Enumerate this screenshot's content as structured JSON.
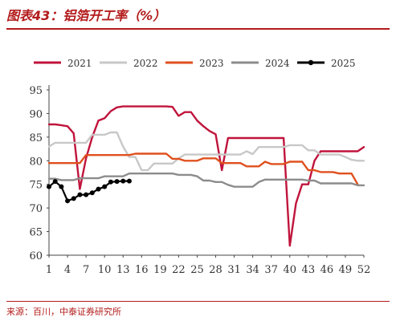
{
  "figure": {
    "title": "图表43：铝箔开工率（%）",
    "source": "来源：百川，中泰证券研究所"
  },
  "chart_data": {
    "type": "line",
    "x_tick_labels": [
      "1",
      "4",
      "7",
      "10",
      "13",
      "16",
      "19",
      "22",
      "25",
      "28",
      "31",
      "34",
      "37",
      "40",
      "43",
      "46",
      "49",
      "52"
    ],
    "y_tick_labels": [
      "60",
      "65",
      "70",
      "75",
      "80",
      "85",
      "90",
      "95"
    ],
    "xlim": [
      1,
      52
    ],
    "ylim": [
      60,
      95
    ],
    "grid": false,
    "legend_position": "top",
    "series": [
      {
        "name": "2021",
        "color": "#c0143c",
        "points": [
          [
            1,
            87.7
          ],
          [
            2,
            87.7
          ],
          [
            3,
            87.5
          ],
          [
            4,
            87.3
          ],
          [
            5,
            85.8
          ],
          [
            6,
            74.0
          ],
          [
            7,
            80.5
          ],
          [
            8,
            85.0
          ],
          [
            9,
            88.5
          ],
          [
            10,
            89.0
          ],
          [
            11,
            90.5
          ],
          [
            12,
            91.3
          ],
          [
            13,
            91.5
          ],
          [
            14,
            91.5
          ],
          [
            15,
            91.5
          ],
          [
            16,
            91.5
          ],
          [
            17,
            91.5
          ],
          [
            18,
            91.5
          ],
          [
            19,
            91.5
          ],
          [
            20,
            91.5
          ],
          [
            21,
            91.4
          ],
          [
            22,
            89.5
          ],
          [
            23,
            90.3
          ],
          [
            24,
            90.3
          ],
          [
            25,
            88.5
          ],
          [
            26,
            87.3
          ],
          [
            27,
            86.3
          ],
          [
            28,
            85.6
          ],
          [
            29,
            78.0
          ],
          [
            30,
            84.8
          ],
          [
            31,
            84.8
          ],
          [
            32,
            84.8
          ],
          [
            33,
            84.8
          ],
          [
            34,
            84.8
          ],
          [
            35,
            84.8
          ],
          [
            36,
            84.8
          ],
          [
            37,
            84.8
          ],
          [
            38,
            84.8
          ],
          [
            39,
            84.8
          ],
          [
            40,
            62.0
          ],
          [
            41,
            71.0
          ],
          [
            42,
            75.0
          ],
          [
            43,
            75.0
          ],
          [
            44,
            80.0
          ],
          [
            45,
            82.0
          ],
          [
            46,
            82.0
          ],
          [
            47,
            82.0
          ],
          [
            48,
            82.0
          ],
          [
            49,
            82.0
          ],
          [
            50,
            82.0
          ],
          [
            51,
            82.0
          ],
          [
            52,
            82.9
          ]
        ]
      },
      {
        "name": "2022",
        "color": "#c8c8c8",
        "points": [
          [
            1,
            83.0
          ],
          [
            2,
            83.8
          ],
          [
            3,
            83.8
          ],
          [
            4,
            83.8
          ],
          [
            5,
            83.8
          ],
          [
            6,
            83.8
          ],
          [
            7,
            83.8
          ],
          [
            8,
            85.5
          ],
          [
            9,
            85.5
          ],
          [
            10,
            85.5
          ],
          [
            11,
            86.0
          ],
          [
            12,
            86.0
          ],
          [
            13,
            83.0
          ],
          [
            14,
            80.8
          ],
          [
            15,
            80.8
          ],
          [
            16,
            78.0
          ],
          [
            17,
            78.0
          ],
          [
            18,
            79.4
          ],
          [
            19,
            79.4
          ],
          [
            20,
            79.4
          ],
          [
            21,
            79.4
          ],
          [
            22,
            80.5
          ],
          [
            23,
            81.3
          ],
          [
            24,
            81.3
          ],
          [
            25,
            81.3
          ],
          [
            26,
            81.3
          ],
          [
            27,
            81.3
          ],
          [
            28,
            81.3
          ],
          [
            29,
            81.3
          ],
          [
            30,
            81.3
          ],
          [
            31,
            81.3
          ],
          [
            32,
            81.3
          ],
          [
            33,
            82.0
          ],
          [
            34,
            81.4
          ],
          [
            35,
            82.9
          ],
          [
            36,
            82.9
          ],
          [
            37,
            82.9
          ],
          [
            38,
            82.9
          ],
          [
            39,
            82.9
          ],
          [
            40,
            83.3
          ],
          [
            41,
            83.3
          ],
          [
            42,
            83.3
          ],
          [
            43,
            82.2
          ],
          [
            44,
            82.2
          ],
          [
            45,
            81.3
          ],
          [
            46,
            81.3
          ],
          [
            47,
            81.3
          ],
          [
            48,
            81.3
          ],
          [
            49,
            80.8
          ],
          [
            50,
            80.2
          ],
          [
            51,
            80.0
          ],
          [
            52,
            80.0
          ]
        ]
      },
      {
        "name": "2023",
        "color": "#e0501e",
        "points": [
          [
            1,
            79.5
          ],
          [
            2,
            79.5
          ],
          [
            3,
            79.5
          ],
          [
            4,
            79.5
          ],
          [
            5,
            79.5
          ],
          [
            6,
            79.5
          ],
          [
            7,
            81.2
          ],
          [
            8,
            81.2
          ],
          [
            9,
            81.2
          ],
          [
            10,
            81.2
          ],
          [
            11,
            81.2
          ],
          [
            12,
            81.2
          ],
          [
            13,
            81.2
          ],
          [
            14,
            81.2
          ],
          [
            15,
            81.5
          ],
          [
            16,
            81.5
          ],
          [
            17,
            81.5
          ],
          [
            18,
            81.5
          ],
          [
            19,
            81.5
          ],
          [
            20,
            81.5
          ],
          [
            21,
            80.4
          ],
          [
            22,
            80.4
          ],
          [
            23,
            80.0
          ],
          [
            24,
            80.0
          ],
          [
            25,
            80.0
          ],
          [
            26,
            80.5
          ],
          [
            27,
            80.5
          ],
          [
            28,
            80.5
          ],
          [
            29,
            79.5
          ],
          [
            30,
            79.5
          ],
          [
            31,
            79.5
          ],
          [
            32,
            79.5
          ],
          [
            33,
            78.8
          ],
          [
            34,
            78.8
          ],
          [
            35,
            78.8
          ],
          [
            36,
            79.8
          ],
          [
            37,
            79.3
          ],
          [
            38,
            79.3
          ],
          [
            39,
            79.3
          ],
          [
            40,
            79.8
          ],
          [
            41,
            79.8
          ],
          [
            42,
            79.8
          ],
          [
            43,
            78.0
          ],
          [
            44,
            78.0
          ],
          [
            45,
            77.6
          ],
          [
            46,
            77.6
          ],
          [
            47,
            77.6
          ],
          [
            48,
            77.3
          ],
          [
            49,
            77.3
          ],
          [
            50,
            77.3
          ],
          [
            51,
            75.0
          ]
        ]
      },
      {
        "name": "2024",
        "color": "#8c8c8c",
        "points": [
          [
            1,
            76.2
          ],
          [
            2,
            76.2
          ],
          [
            3,
            75.9
          ],
          [
            4,
            75.9
          ],
          [
            5,
            75.9
          ],
          [
            6,
            76.3
          ],
          [
            7,
            76.3
          ],
          [
            8,
            76.3
          ],
          [
            9,
            76.3
          ],
          [
            10,
            76.7
          ],
          [
            11,
            76.7
          ],
          [
            12,
            76.7
          ],
          [
            13,
            76.7
          ],
          [
            14,
            77.3
          ],
          [
            15,
            77.3
          ],
          [
            16,
            77.3
          ],
          [
            17,
            77.3
          ],
          [
            18,
            77.3
          ],
          [
            19,
            77.3
          ],
          [
            20,
            77.3
          ],
          [
            21,
            77.3
          ],
          [
            22,
            77.0
          ],
          [
            23,
            77.0
          ],
          [
            24,
            77.0
          ],
          [
            25,
            76.7
          ],
          [
            26,
            75.8
          ],
          [
            27,
            75.8
          ],
          [
            28,
            75.5
          ],
          [
            29,
            75.5
          ],
          [
            30,
            74.9
          ],
          [
            31,
            74.5
          ],
          [
            32,
            74.5
          ],
          [
            33,
            74.5
          ],
          [
            34,
            74.5
          ],
          [
            35,
            75.5
          ],
          [
            36,
            76.0
          ],
          [
            37,
            76.0
          ],
          [
            38,
            76.0
          ],
          [
            39,
            76.0
          ],
          [
            40,
            76.0
          ],
          [
            41,
            76.0
          ],
          [
            42,
            76.0
          ],
          [
            43,
            75.8
          ],
          [
            44,
            75.8
          ],
          [
            45,
            75.2
          ],
          [
            46,
            75.2
          ],
          [
            47,
            75.2
          ],
          [
            48,
            75.2
          ],
          [
            49,
            75.2
          ],
          [
            50,
            75.2
          ],
          [
            51,
            74.8
          ],
          [
            52,
            74.8
          ]
        ]
      },
      {
        "name": "2025",
        "color": "#000000",
        "points": [
          [
            1,
            74.5
          ],
          [
            2,
            75.6
          ],
          [
            3,
            74.5
          ],
          [
            4,
            71.5
          ],
          [
            5,
            72.0
          ],
          [
            6,
            72.8
          ],
          [
            7,
            72.8
          ],
          [
            8,
            73.2
          ],
          [
            9,
            74.0
          ],
          [
            10,
            74.5
          ],
          [
            11,
            75.5
          ],
          [
            12,
            75.6
          ],
          [
            13,
            75.7
          ],
          [
            14,
            75.7
          ]
        ]
      }
    ]
  }
}
